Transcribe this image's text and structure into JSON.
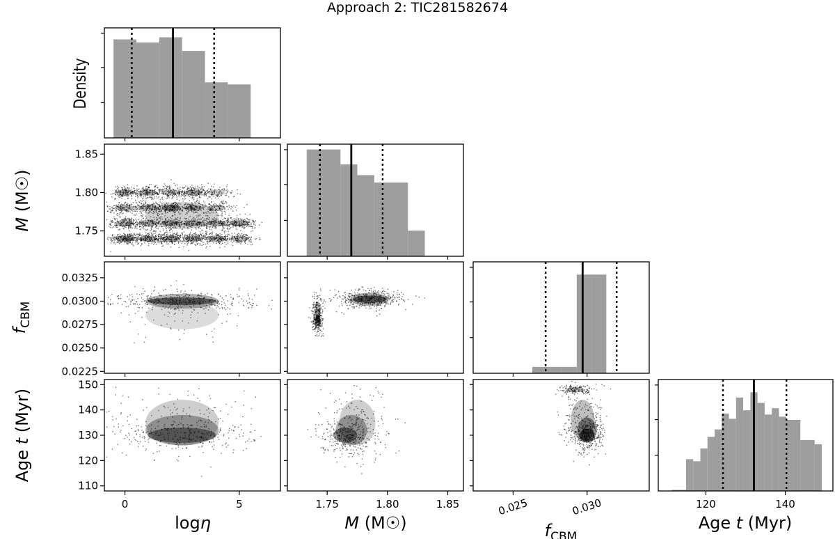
{
  "title": "Approach 2: TIC281582674",
  "density_label": "Density",
  "chart_data": {
    "type": "scatter",
    "title": "Approach 2: TIC281582674",
    "kind": "corner plot",
    "parameters": [
      {
        "key": "log_eta",
        "label": "logη",
        "range": [
          -0.9,
          6.8
        ],
        "ticks": [
          0,
          5
        ],
        "tick_labels": [
          "0",
          "5"
        ],
        "hist": {
          "edges": [
            -0.5,
            0.5,
            1.5,
            2.5,
            3.5,
            4.5,
            5.5
          ],
          "counts": [
            0.94,
            0.91,
            0.96,
            0.83,
            0.53,
            0.51
          ],
          "q16": 0.3,
          "median": 2.1,
          "q84": 3.9
        }
      },
      {
        "key": "M",
        "label": "M (M☉)",
        "range": [
          1.717,
          1.863
        ],
        "ticks": [
          1.75,
          1.8,
          1.85
        ],
        "tick_labels": [
          "1.75",
          "1.80",
          "1.85"
        ],
        "hist": {
          "edges": [
            1.733,
            1.747,
            1.761,
            1.775,
            1.789,
            1.803,
            1.817,
            1.831
          ],
          "counts": [
            1.0,
            1.0,
            0.86,
            0.76,
            0.69,
            0.69,
            0.24
          ],
          "q16": 1.744,
          "median": 1.77,
          "q84": 1.796
        }
      },
      {
        "key": "f_CBM",
        "label": "f_CBM",
        "range": [
          0.0223,
          0.0342
        ],
        "ticks": [
          0.025,
          0.03
        ],
        "tick_labels": [
          "0.025",
          "0.030"
        ],
        "ticks_y": [
          0.0225,
          0.025,
          0.0275,
          0.03,
          0.0325
        ],
        "tick_labels_y": [
          "0.0225",
          "0.0250",
          "0.0275",
          "0.0300",
          "0.0325"
        ],
        "hist": {
          "edges": [
            0.0263,
            0.0283,
            0.0293,
            0.0303,
            0.0313
          ],
          "counts": [
            0.06,
            0.06,
            0.93,
            0.93
          ],
          "q16": 0.0272,
          "median": 0.0297,
          "q84": 0.032
        }
      },
      {
        "key": "age",
        "label": "Age t (Myr)",
        "range": [
          108,
          152
        ],
        "ticks": [
          120,
          130,
          140,
          150
        ],
        "tick_labels": [
          "120",
          "130",
          "140",
          "150"
        ],
        "ticks_x": [
          120,
          140
        ],
        "tick_labels_x": [
          "120",
          "140"
        ],
        "ticks_y": [
          110,
          120,
          130,
          140,
          150
        ],
        "tick_labels_y": [
          "110",
          "120",
          "130",
          "140",
          "150"
        ],
        "hist": {
          "edges": [
            111.4,
            113.2,
            115.0,
            116.8,
            118.6,
            120.4,
            122.2,
            124.0,
            125.8,
            127.6,
            129.4,
            131.2,
            133.0,
            134.8,
            136.6,
            138.4,
            140.2,
            142.0,
            143.8,
            145.6,
            147.4,
            149.2
          ],
          "counts": [
            0.01,
            0.01,
            0.3,
            0.28,
            0.4,
            0.51,
            0.58,
            0.73,
            0.68,
            0.88,
            0.76,
            0.93,
            0.83,
            0.72,
            0.78,
            0.7,
            0.67,
            0.67,
            0.48,
            0.48,
            0.44
          ],
          "q16": 124.3,
          "median": 132.1,
          "q84": 140.3
        }
      }
    ],
    "histogram_ylabel": "Density",
    "density_clusters": {
      "log_eta__M": [
        {
          "x": 0,
          "y": 1.74,
          "w": 0.8,
          "h": 0.008,
          "a": 0.75
        },
        {
          "x": 1,
          "y": 1.74,
          "w": 0.8,
          "h": 0.008,
          "a": 0.7
        },
        {
          "x": 2,
          "y": 1.74,
          "w": 0.8,
          "h": 0.008,
          "a": 0.7
        },
        {
          "x": 3,
          "y": 1.74,
          "w": 0.8,
          "h": 0.008,
          "a": 0.65
        },
        {
          "x": 4,
          "y": 1.74,
          "w": 0.8,
          "h": 0.008,
          "a": 0.55
        },
        {
          "x": 5,
          "y": 1.74,
          "w": 0.8,
          "h": 0.008,
          "a": 0.5
        },
        {
          "x": 0,
          "y": 1.76,
          "w": 0.8,
          "h": 0.008,
          "a": 0.6
        },
        {
          "x": 1,
          "y": 1.76,
          "w": 0.8,
          "h": 0.008,
          "a": 0.55
        },
        {
          "x": 2,
          "y": 1.76,
          "w": 0.8,
          "h": 0.008,
          "a": 0.55
        },
        {
          "x": 3,
          "y": 1.76,
          "w": 0.8,
          "h": 0.008,
          "a": 0.5
        },
        {
          "x": 4,
          "y": 1.76,
          "w": 0.8,
          "h": 0.008,
          "a": 0.6
        },
        {
          "x": 5,
          "y": 1.76,
          "w": 0.8,
          "h": 0.008,
          "a": 0.65
        },
        {
          "x": 0,
          "y": 1.78,
          "w": 0.8,
          "h": 0.008,
          "a": 0.55
        },
        {
          "x": 1,
          "y": 1.78,
          "w": 0.8,
          "h": 0.008,
          "a": 0.5
        },
        {
          "x": 2,
          "y": 1.78,
          "w": 0.8,
          "h": 0.008,
          "a": 0.75
        },
        {
          "x": 3,
          "y": 1.78,
          "w": 0.8,
          "h": 0.008,
          "a": 0.45
        },
        {
          "x": 4,
          "y": 1.78,
          "w": 0.8,
          "h": 0.008,
          "a": 0.4
        },
        {
          "x": 0,
          "y": 1.8,
          "w": 0.8,
          "h": 0.008,
          "a": 0.55
        },
        {
          "x": 1,
          "y": 1.8,
          "w": 0.8,
          "h": 0.008,
          "a": 0.6
        },
        {
          "x": 2,
          "y": 1.8,
          "w": 0.8,
          "h": 0.008,
          "a": 0.5
        },
        {
          "x": 3,
          "y": 1.8,
          "w": 0.8,
          "h": 0.008,
          "a": 0.6
        },
        {
          "x": 4,
          "y": 1.8,
          "w": 0.8,
          "h": 0.008,
          "a": 0.35
        },
        {
          "x": 2.5,
          "y": 1.77,
          "w": 3.2,
          "h": 0.035,
          "a": 0.35
        }
      ],
      "log_eta__f_CBM": [
        {
          "x": 2.5,
          "y": 0.03,
          "w": 3.0,
          "h": 0.0008,
          "a": 0.95
        },
        {
          "x": 2.5,
          "y": 0.03,
          "w": 3.2,
          "h": 0.0016,
          "a": 0.55
        },
        {
          "x": 2.5,
          "y": 0.0285,
          "w": 3.2,
          "h": 0.003,
          "a": 0.25
        }
      ],
      "M__f_CBM": [
        {
          "x": 1.785,
          "y": 0.0302,
          "w": 0.028,
          "h": 0.0008,
          "a": 0.95
        },
        {
          "x": 1.785,
          "y": 0.0302,
          "w": 0.032,
          "h": 0.0014,
          "a": 0.6
        },
        {
          "x": 1.742,
          "y": 0.028,
          "w": 0.004,
          "h": 0.0012,
          "a": 0.85
        },
        {
          "x": 1.742,
          "y": 0.029,
          "w": 0.005,
          "h": 0.002,
          "a": 0.5
        }
      ],
      "log_eta__age": [
        {
          "x": 2.5,
          "y": 130,
          "w": 3.0,
          "h": 6,
          "a": 0.75
        },
        {
          "x": 2.5,
          "y": 132,
          "w": 3.2,
          "h": 12,
          "a": 0.55
        },
        {
          "x": 2.5,
          "y": 135,
          "w": 3.2,
          "h": 18,
          "a": 0.35
        }
      ],
      "M__age": [
        {
          "x": 1.765,
          "y": 130,
          "w": 0.02,
          "h": 6,
          "a": 0.75
        },
        {
          "x": 1.77,
          "y": 132,
          "w": 0.026,
          "h": 12,
          "a": 0.55
        },
        {
          "x": 1.775,
          "y": 135,
          "w": 0.03,
          "h": 18,
          "a": 0.35
        }
      ],
      "f_CBM__age": [
        {
          "x": 0.03,
          "y": 130,
          "w": 0.001,
          "h": 5,
          "a": 0.95
        },
        {
          "x": 0.03,
          "y": 132,
          "w": 0.0013,
          "h": 10,
          "a": 0.75
        },
        {
          "x": 0.0297,
          "y": 136,
          "w": 0.0016,
          "h": 16,
          "a": 0.45
        },
        {
          "x": 0.0292,
          "y": 148,
          "w": 0.0012,
          "h": 2,
          "a": 0.5
        }
      ]
    }
  }
}
